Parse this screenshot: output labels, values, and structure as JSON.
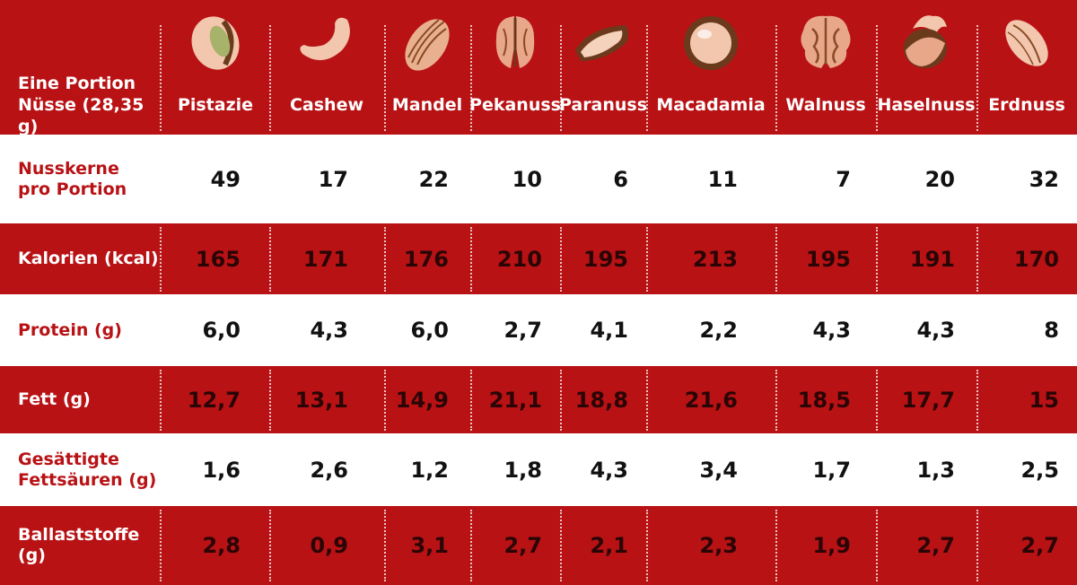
{
  "header": {
    "corner_label_line1": "Eine Portion",
    "corner_label_line2": "Nüsse (28,35 g)"
  },
  "nuts": [
    {
      "name": "Pistazie",
      "icon": "pistachio-icon"
    },
    {
      "name": "Cashew",
      "icon": "cashew-icon"
    },
    {
      "name": "Mandel",
      "icon": "almond-icon"
    },
    {
      "name": "Pekanuss",
      "icon": "pecan-icon"
    },
    {
      "name": "Paranuss",
      "icon": "brazil-nut-icon"
    },
    {
      "name": "Macadamia",
      "icon": "macadamia-icon"
    },
    {
      "name": "Walnuss",
      "icon": "walnut-icon"
    },
    {
      "name": "Haselnuss",
      "icon": "hazelnut-icon"
    },
    {
      "name": "Erdnuss",
      "icon": "peanut-icon"
    }
  ],
  "rows": [
    {
      "label_line1": "Nusskerne",
      "label_line2": "pro Portion",
      "values": [
        "49",
        "17",
        "22",
        "10",
        "6",
        "11",
        "7",
        "20",
        "32"
      ]
    },
    {
      "label_line1": "Kalorien (kcal)",
      "label_line2": "",
      "values": [
        "165",
        "171",
        "176",
        "210",
        "195",
        "213",
        "195",
        "191",
        "170"
      ]
    },
    {
      "label_line1": "Protein (g)",
      "label_line2": "",
      "values": [
        "6,0",
        "4,3",
        "6,0",
        "2,7",
        "4,1",
        "2,2",
        "4,3",
        "4,3",
        "8"
      ]
    },
    {
      "label_line1": "Fett (g)",
      "label_line2": "",
      "values": [
        "12,7",
        "13,1",
        "14,9",
        "21,1",
        "18,8",
        "21,6",
        "18,5",
        "17,7",
        "15"
      ]
    },
    {
      "label_line1": "Gesättigte",
      "label_line2": "Fettsäuren (g)",
      "values": [
        "1,6",
        "2,6",
        "1,2",
        "1,8",
        "4,3",
        "3,4",
        "1,7",
        "1,3",
        "2,5"
      ]
    },
    {
      "label_line1": "Ballaststoffe (g)",
      "label_line2": "",
      "values": [
        "2,8",
        "0,9",
        "3,1",
        "2,7",
        "2,1",
        "2,3",
        "1,9",
        "2,7",
        "2,7"
      ]
    }
  ],
  "colors": {
    "red": "#b81215",
    "white": "#ffffff",
    "nut_fill": "#f2c7ad",
    "nut_dark": "#6b3a1c"
  }
}
